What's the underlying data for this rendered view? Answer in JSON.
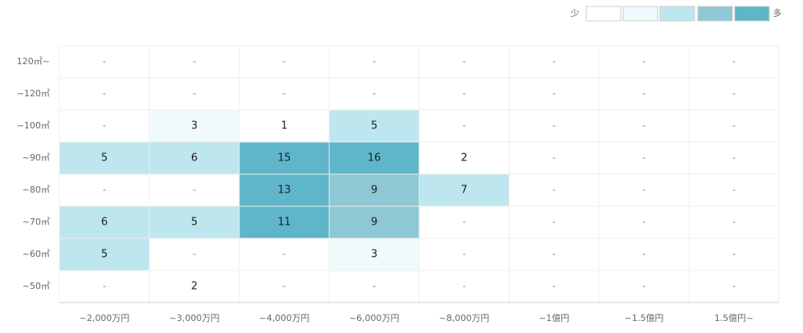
{
  "legend": {
    "low": "少",
    "high": "多",
    "colors": [
      "#ffffff",
      "#f0fafd",
      "#bde6ef",
      "#8ec8d4",
      "#5fb5c9"
    ]
  },
  "columns": [
    "~2,000万円",
    "~3,000万円",
    "~4,000万円",
    "~6,000万円",
    "~8,000万円",
    "~1億円",
    "~1.5億円",
    "1.5億円~"
  ],
  "rows": [
    {
      "label": "120㎡~",
      "cells": [
        "-",
        "-",
        "-",
        "-",
        "-",
        "-",
        "-",
        "-"
      ],
      "levels": [
        0,
        0,
        0,
        0,
        0,
        0,
        0,
        0
      ]
    },
    {
      "label": "~120㎡",
      "cells": [
        "-",
        "-",
        "-",
        "-",
        "-",
        "-",
        "-",
        "-"
      ],
      "levels": [
        0,
        0,
        0,
        0,
        0,
        0,
        0,
        0
      ]
    },
    {
      "label": "~100㎡",
      "cells": [
        "-",
        3,
        1,
        5,
        "-",
        "-",
        "-",
        "-"
      ],
      "levels": [
        0,
        1,
        0,
        2,
        0,
        0,
        0,
        0
      ]
    },
    {
      "label": "~90㎡",
      "cells": [
        5,
        6,
        15,
        16,
        2,
        "-",
        "-",
        "-"
      ],
      "levels": [
        2,
        2,
        4,
        4,
        0,
        0,
        0,
        0
      ]
    },
    {
      "label": "~80㎡",
      "cells": [
        "-",
        "-",
        13,
        9,
        7,
        "-",
        "-",
        "-"
      ],
      "levels": [
        0,
        0,
        4,
        3,
        2,
        0,
        0,
        0
      ]
    },
    {
      "label": "~70㎡",
      "cells": [
        6,
        5,
        11,
        9,
        "-",
        "-",
        "-",
        "-"
      ],
      "levels": [
        2,
        2,
        4,
        3,
        0,
        0,
        0,
        0
      ]
    },
    {
      "label": "~60㎡",
      "cells": [
        5,
        "-",
        "-",
        3,
        "-",
        "-",
        "-",
        "-"
      ],
      "levels": [
        2,
        0,
        0,
        1,
        0,
        0,
        0,
        0
      ]
    },
    {
      "label": "~50㎡",
      "cells": [
        "-",
        2,
        "-",
        "-",
        "-",
        "-",
        "-",
        "-"
      ],
      "levels": [
        0,
        0,
        0,
        0,
        0,
        0,
        0,
        0
      ]
    }
  ]
}
